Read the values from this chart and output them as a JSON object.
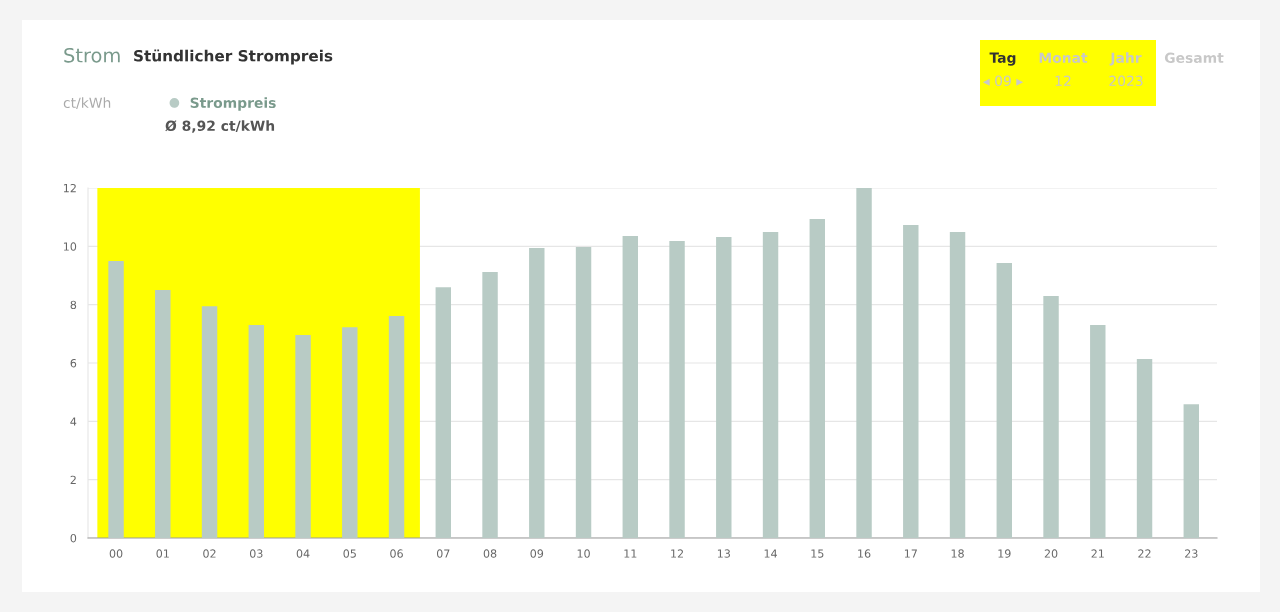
{
  "chart_data": {
    "type": "bar",
    "title": "Strom",
    "subtitle": "Stündlicher Strompreis",
    "categories": [
      "00",
      "01",
      "02",
      "03",
      "04",
      "05",
      "06",
      "07",
      "08",
      "09",
      "10",
      "11",
      "12",
      "13",
      "14",
      "15",
      "16",
      "17",
      "18",
      "19",
      "20",
      "21",
      "22",
      "23"
    ],
    "series": [
      {
        "name": "Strompreis",
        "color": "#b8cbc5",
        "values": [
          9.5,
          8.5,
          7.95,
          7.3,
          6.96,
          7.23,
          7.61,
          8.6,
          9.12,
          9.94,
          9.98,
          10.35,
          10.18,
          10.32,
          10.49,
          10.94,
          12.0,
          10.73,
          10.49,
          9.43,
          8.3,
          7.3,
          6.14,
          4.59
        ]
      }
    ],
    "ylim": [
      0,
      12
    ],
    "yticks": [
      0,
      2,
      4,
      6,
      8,
      10,
      12
    ],
    "grid": "y",
    "legend": "top left",
    "bands": [
      {
        "axis": "x",
        "from": "00",
        "to": "06",
        "color": "#ffff00"
      }
    ],
    "annotations": [
      "ct/kWh",
      "Ø 8,92 ct/kWh",
      "Tag",
      "Monat",
      "Jahr",
      "Gesamt",
      "◂ 09 ▸",
      "12",
      "2023"
    ]
  }
}
